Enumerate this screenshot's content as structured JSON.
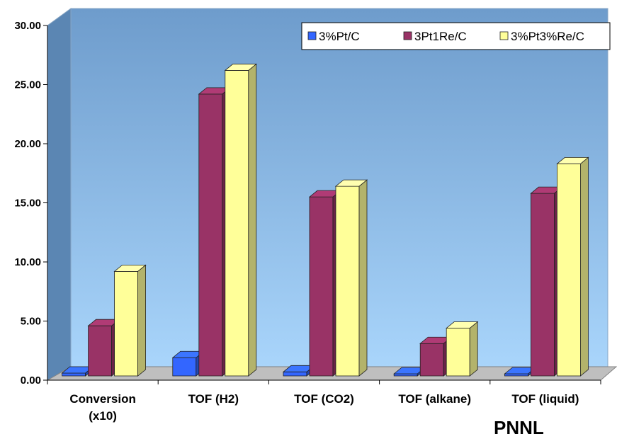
{
  "chart_data": {
    "type": "bar",
    "categories": [
      [
        "Conversion",
        "(x10)"
      ],
      [
        "TOF (H2)"
      ],
      [
        "TOF (CO2)"
      ],
      [
        "TOF (alkane)"
      ],
      [
        "TOF (liquid)"
      ]
    ],
    "series": [
      {
        "name": "3%Pt/C",
        "color": "#3366ff",
        "values": [
          0.6,
          1.9,
          0.7,
          0.1,
          0.4
        ]
      },
      {
        "name": "3Pt1Re/C",
        "color": "#993366",
        "values": [
          4.6,
          24.2,
          15.5,
          3.1,
          15.8
        ]
      },
      {
        "name": "3%Pt3%Re/C",
        "color": "#ffff99",
        "values": [
          9.2,
          26.2,
          16.4,
          4.4,
          18.3
        ]
      }
    ],
    "y_ticks": [
      "0.00",
      "5.00",
      "10.00",
      "15.00",
      "20.00",
      "25.00",
      "30.00"
    ],
    "ylim": [
      0,
      30
    ],
    "grid": false,
    "legend_position": "top-right",
    "style": "3d-clustered-column",
    "wall_gradient": [
      "#6e9ccc",
      "#a8d4fb"
    ]
  },
  "brand_label": "PNNL"
}
